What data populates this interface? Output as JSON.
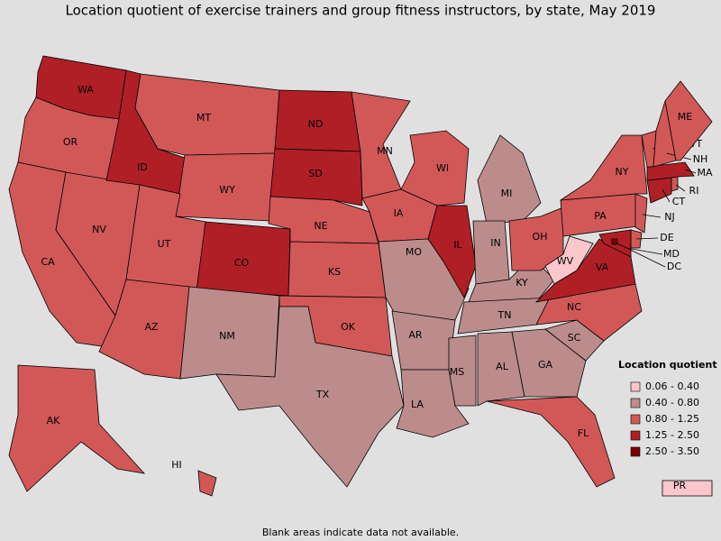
{
  "title": "Location quotient of exercise trainers and group fitness instructors, by state, May 2019",
  "legend": {
    "title": "Location quotient",
    "items": [
      {
        "label": "0.06 - 0.40",
        "color": "#fbc6cc"
      },
      {
        "label": "0.40 - 0.80",
        "color": "#bc8c8c"
      },
      {
        "label": "0.80 - 1.25",
        "color": "#d25858"
      },
      {
        "label": "1.25 - 2.50",
        "color": "#b01f26"
      },
      {
        "label": "2.50 - 3.50",
        "color": "#7d0000"
      }
    ]
  },
  "states": [
    {
      "label": "WA",
      "color": "#b01f26"
    },
    {
      "label": "OR",
      "color": "#d25858"
    },
    {
      "label": "CA",
      "color": "#d25858"
    },
    {
      "label": "NV",
      "color": "#d25858"
    },
    {
      "label": "ID",
      "color": "#b01f26"
    },
    {
      "label": "MT",
      "color": "#d25858"
    },
    {
      "label": "WY",
      "color": "#d25858"
    },
    {
      "label": "UT",
      "color": "#d25858"
    },
    {
      "label": "AZ",
      "color": "#d25858"
    },
    {
      "label": "CO",
      "color": "#b01f26"
    },
    {
      "label": "NM",
      "color": "#bc8c8c"
    },
    {
      "label": "ND",
      "color": "#b01f26"
    },
    {
      "label": "SD",
      "color": "#b01f26"
    },
    {
      "label": "NE",
      "color": "#d25858"
    },
    {
      "label": "KS",
      "color": "#d25858"
    },
    {
      "label": "OK",
      "color": "#d25858"
    },
    {
      "label": "TX",
      "color": "#bc8c8c"
    },
    {
      "label": "MN",
      "color": "#d25858"
    },
    {
      "label": "IA",
      "color": "#d25858"
    },
    {
      "label": "MO",
      "color": "#bc8c8c"
    },
    {
      "label": "AR",
      "color": "#bc8c8c"
    },
    {
      "label": "LA",
      "color": "#bc8c8c"
    },
    {
      "label": "WI",
      "color": "#d25858"
    },
    {
      "label": "IL",
      "color": "#b01f26"
    },
    {
      "label": "MS",
      "color": "#bc8c8c"
    },
    {
      "label": "MI",
      "color": "#bc8c8c"
    },
    {
      "label": "IN",
      "color": "#bc8c8c"
    },
    {
      "label": "KY",
      "color": "#bc8c8c"
    },
    {
      "label": "TN",
      "color": "#bc8c8c"
    },
    {
      "label": "AL",
      "color": "#bc8c8c"
    },
    {
      "label": "GA",
      "color": "#bc8c8c"
    },
    {
      "label": "FL",
      "color": "#d25858"
    },
    {
      "label": "SC",
      "color": "#bc8c8c"
    },
    {
      "label": "NC",
      "color": "#d25858"
    },
    {
      "label": "OH",
      "color": "#d25858"
    },
    {
      "label": "WV",
      "color": "#fbc6cc"
    },
    {
      "label": "VA",
      "color": "#b01f26"
    },
    {
      "label": "PA",
      "color": "#d25858"
    },
    {
      "label": "NY",
      "color": "#d25858"
    },
    {
      "label": "NJ",
      "color": "#d25858"
    },
    {
      "label": "DE",
      "color": "#d25858"
    },
    {
      "label": "MD",
      "color": "#b01f26"
    },
    {
      "label": "DC",
      "color": "#7d0000"
    },
    {
      "label": "CT",
      "color": "#b01f26"
    },
    {
      "label": "RI",
      "color": "#d25858"
    },
    {
      "label": "MA",
      "color": "#b01f26"
    },
    {
      "label": "VT",
      "color": "#d25858"
    },
    {
      "label": "NH",
      "color": "#d25858"
    },
    {
      "label": "ME",
      "color": "#d25858"
    },
    {
      "label": "AK",
      "color": "#d25858"
    },
    {
      "label": "HI",
      "color": "#d25858"
    },
    {
      "label": "PR",
      "color": "#fbc6cc"
    }
  ],
  "footnote": "Blank areas indicate data not available."
}
